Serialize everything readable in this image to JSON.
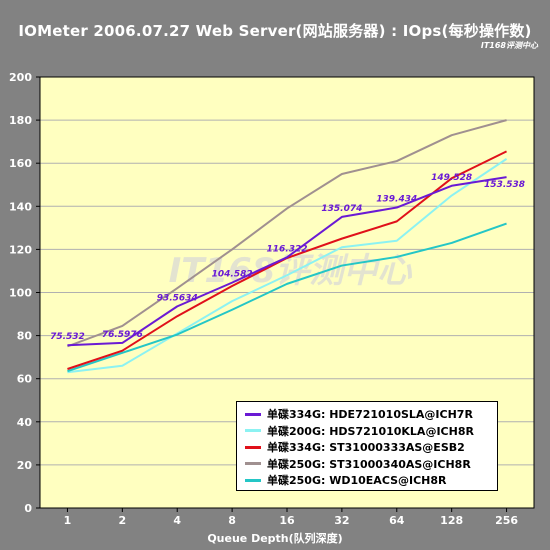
{
  "header": {
    "title": "IOMeter 2006.07.27 Web Server(网站服务器) : IOps(每秒操作数)",
    "brand": "IT168评测中心"
  },
  "watermark": "IT168评测中心",
  "chart_data": {
    "type": "line",
    "title": "IOMeter 2006.07.27 Web Server(网站服务器) : IOps(每秒操作数)",
    "xlabel": "Queue Depth(队列深度)",
    "ylabel": "",
    "categories": [
      "1",
      "2",
      "4",
      "8",
      "16",
      "32",
      "64",
      "128",
      "256"
    ],
    "ylim": [
      0,
      200
    ],
    "yticks": [
      0,
      20,
      40,
      60,
      80,
      100,
      120,
      140,
      160,
      180,
      200
    ],
    "grid": true,
    "legend_position": "bottom-right",
    "plot_background": "#ffffc0",
    "series": [
      {
        "name": "单碟334G:  HDE721010SLA@ICH7R",
        "color": "#6a1ad4",
        "values": [
          75.532,
          76.5976,
          93.5634,
          104.582,
          116.322,
          135.074,
          139.434,
          149.528,
          153.538
        ],
        "labels": [
          "75.532",
          "76.5976",
          "93.5634",
          "104.582",
          "116.322",
          "135.074",
          "139.434",
          "149.528",
          "153.538"
        ]
      },
      {
        "name": "单碟200G:  HDS721010KLA@ICH8R",
        "color": "#8cf2f2",
        "values": [
          63,
          66,
          81,
          96,
          108,
          121,
          124,
          145,
          162
        ]
      },
      {
        "name": "单碟334G:  ST31000333AS@ESB2",
        "color": "#e0101a",
        "values": [
          64.5,
          73,
          89,
          103,
          116,
          125,
          133,
          153,
          165.5
        ]
      },
      {
        "name": "单碟250G:  ST31000340AS@ICH8R",
        "color": "#a09090",
        "values": [
          75,
          84.5,
          102,
          120,
          139,
          155,
          161,
          173,
          180
        ]
      },
      {
        "name": "单碟250G:  WD10EACS@ICH8R",
        "color": "#24c6c6",
        "values": [
          63.5,
          72,
          80.5,
          92,
          104,
          112.5,
          116.5,
          123,
          132
        ]
      }
    ]
  }
}
